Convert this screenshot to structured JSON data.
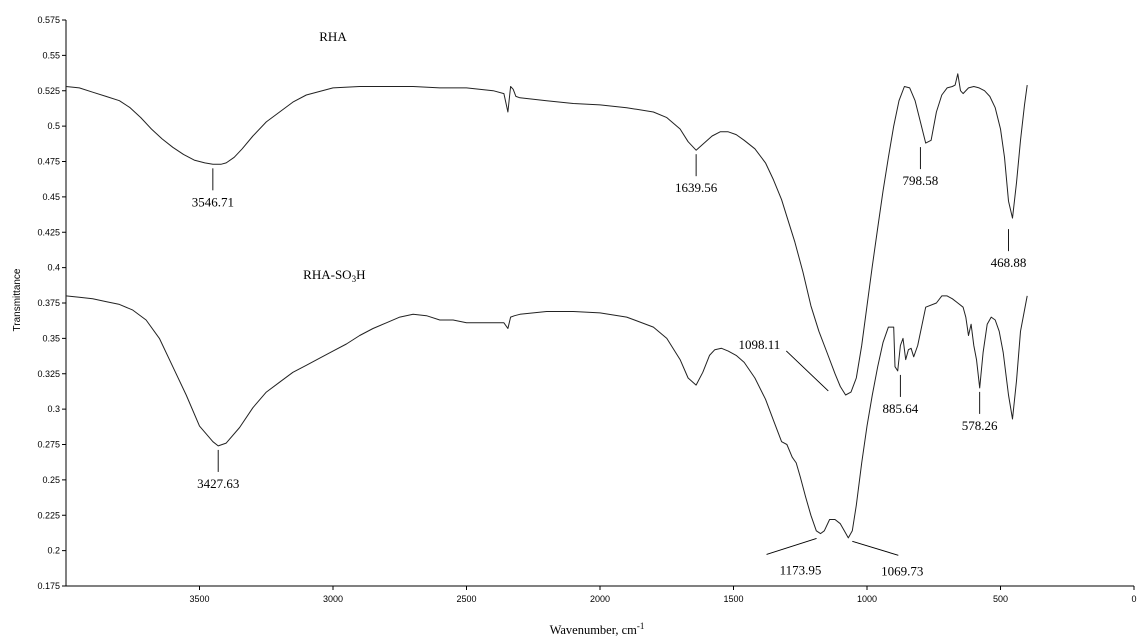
{
  "chart_data": {
    "type": "line",
    "title": "",
    "xlabel": "Wavenumber, cm",
    "xlabel_superscript": "-1",
    "ylabel": "Transmittance",
    "xlim": [
      4000,
      0
    ],
    "ylim": [
      0.175,
      0.575
    ],
    "grid": false,
    "x_ticks": [
      "3500",
      "3000",
      "2500",
      "2000",
      "1500",
      "1000",
      "500",
      "0"
    ],
    "y_ticks": [
      "0.175",
      "0.2",
      "0.225",
      "0.25",
      "0.275",
      "0.3",
      "0.325",
      "0.35",
      "0.375",
      "0.4",
      "0.425",
      "0.45",
      "0.475",
      "0.5",
      "0.525",
      "0.55",
      "0.575"
    ],
    "series": [
      {
        "name": "RHA",
        "color": "#222222",
        "x": [
          4000,
          3950,
          3900,
          3850,
          3800,
          3760,
          3720,
          3680,
          3640,
          3600,
          3560,
          3520,
          3480,
          3450,
          3420,
          3400,
          3370,
          3340,
          3300,
          3250,
          3200,
          3150,
          3100,
          3000,
          2900,
          2800,
          2700,
          2600,
          2500,
          2400,
          2360,
          2345,
          2335,
          2325,
          2315,
          2300,
          2250,
          2200,
          2100,
          2000,
          1900,
          1800,
          1750,
          1700,
          1670,
          1640,
          1610,
          1580,
          1550,
          1520,
          1490,
          1460,
          1420,
          1380,
          1350,
          1320,
          1300,
          1270,
          1240,
          1210,
          1180,
          1150,
          1120,
          1100,
          1080,
          1060,
          1040,
          1020,
          1000,
          980,
          960,
          940,
          920,
          900,
          880,
          860,
          840,
          820,
          800,
          780,
          760,
          740,
          720,
          700,
          680,
          670,
          660,
          650,
          640,
          620,
          600,
          580,
          560,
          540,
          520,
          500,
          485,
          470,
          455,
          440,
          425,
          410,
          400
        ],
        "y": [
          0.528,
          0.527,
          0.524,
          0.521,
          0.518,
          0.513,
          0.506,
          0.498,
          0.491,
          0.485,
          0.48,
          0.476,
          0.474,
          0.473,
          0.473,
          0.474,
          0.478,
          0.484,
          0.493,
          0.503,
          0.51,
          0.517,
          0.522,
          0.527,
          0.528,
          0.528,
          0.528,
          0.527,
          0.527,
          0.525,
          0.523,
          0.51,
          0.528,
          0.526,
          0.521,
          0.52,
          0.519,
          0.518,
          0.516,
          0.515,
          0.513,
          0.51,
          0.506,
          0.498,
          0.489,
          0.483,
          0.488,
          0.493,
          0.496,
          0.496,
          0.494,
          0.49,
          0.484,
          0.474,
          0.462,
          0.448,
          0.436,
          0.418,
          0.397,
          0.373,
          0.355,
          0.34,
          0.325,
          0.316,
          0.31,
          0.312,
          0.322,
          0.345,
          0.373,
          0.401,
          0.428,
          0.454,
          0.478,
          0.5,
          0.518,
          0.528,
          0.527,
          0.518,
          0.503,
          0.488,
          0.49,
          0.51,
          0.522,
          0.527,
          0.528,
          0.529,
          0.537,
          0.525,
          0.523,
          0.527,
          0.528,
          0.527,
          0.525,
          0.521,
          0.513,
          0.498,
          0.478,
          0.447,
          0.435,
          0.46,
          0.49,
          0.515,
          0.529
        ]
      },
      {
        "name": "RHA-SO3H",
        "color": "#222222",
        "x": [
          4000,
          3950,
          3900,
          3850,
          3800,
          3750,
          3700,
          3650,
          3600,
          3550,
          3500,
          3450,
          3430,
          3400,
          3350,
          3300,
          3250,
          3200,
          3150,
          3100,
          3050,
          3000,
          2950,
          2900,
          2850,
          2800,
          2750,
          2700,
          2650,
          2600,
          2550,
          2500,
          2450,
          2400,
          2360,
          2345,
          2335,
          2320,
          2300,
          2200,
          2100,
          2000,
          1900,
          1800,
          1750,
          1700,
          1670,
          1640,
          1615,
          1590,
          1570,
          1545,
          1520,
          1490,
          1460,
          1420,
          1380,
          1350,
          1320,
          1300,
          1280,
          1265,
          1250,
          1230,
          1210,
          1190,
          1174,
          1160,
          1140,
          1120,
          1100,
          1085,
          1070,
          1055,
          1040,
          1020,
          1000,
          980,
          960,
          940,
          920,
          900,
          895,
          885,
          875,
          865,
          855,
          845,
          835,
          825,
          810,
          780,
          740,
          720,
          700,
          680,
          660,
          640,
          630,
          620,
          610,
          600,
          590,
          578,
          565,
          550,
          535,
          520,
          505,
          490,
          470,
          455,
          440,
          425,
          410,
          400
        ],
        "y": [
          0.38,
          0.379,
          0.378,
          0.376,
          0.374,
          0.37,
          0.363,
          0.35,
          0.33,
          0.31,
          0.288,
          0.277,
          0.274,
          0.276,
          0.287,
          0.301,
          0.312,
          0.319,
          0.326,
          0.331,
          0.336,
          0.341,
          0.346,
          0.352,
          0.357,
          0.361,
          0.365,
          0.367,
          0.366,
          0.363,
          0.363,
          0.361,
          0.361,
          0.361,
          0.361,
          0.357,
          0.365,
          0.366,
          0.367,
          0.369,
          0.369,
          0.368,
          0.365,
          0.358,
          0.35,
          0.335,
          0.322,
          0.317,
          0.326,
          0.338,
          0.342,
          0.343,
          0.341,
          0.338,
          0.333,
          0.322,
          0.307,
          0.292,
          0.277,
          0.275,
          0.266,
          0.262,
          0.252,
          0.238,
          0.225,
          0.214,
          0.212,
          0.214,
          0.222,
          0.222,
          0.219,
          0.214,
          0.209,
          0.214,
          0.232,
          0.262,
          0.288,
          0.31,
          0.33,
          0.347,
          0.358,
          0.358,
          0.33,
          0.327,
          0.345,
          0.35,
          0.335,
          0.342,
          0.343,
          0.337,
          0.345,
          0.372,
          0.375,
          0.38,
          0.38,
          0.378,
          0.375,
          0.372,
          0.365,
          0.352,
          0.36,
          0.345,
          0.335,
          0.315,
          0.34,
          0.36,
          0.365,
          0.363,
          0.355,
          0.34,
          0.31,
          0.293,
          0.32,
          0.355,
          0.37,
          0.38
        ]
      }
    ],
    "annotations": [
      {
        "label": "3546.71",
        "x": 3450,
        "y": 0.473,
        "offset": "below"
      },
      {
        "label": "1639.56",
        "x": 1640,
        "y": 0.483,
        "offset": "below"
      },
      {
        "label": "798.58",
        "x": 800,
        "y": 0.488,
        "offset": "below"
      },
      {
        "label": "468.88",
        "x": 470,
        "y": 0.43,
        "offset": "below"
      },
      {
        "label": "1098.11",
        "x": 1130,
        "y": 0.31,
        "offset": "upper-left"
      },
      {
        "label": "3427.63",
        "x": 3430,
        "y": 0.274,
        "offset": "below"
      },
      {
        "label": "885.64",
        "x": 875,
        "y": 0.327,
        "offset": "below"
      },
      {
        "label": "578.26",
        "x": 578,
        "y": 0.315,
        "offset": "below"
      },
      {
        "label": "1173.95",
        "x": 1174,
        "y": 0.21,
        "offset": "lower-left"
      },
      {
        "label": "1069.73",
        "x": 1070,
        "y": 0.208,
        "offset": "lower-right"
      }
    ],
    "series_labels": [
      {
        "name": "RHA",
        "x": 3000,
        "y": 0.56
      },
      {
        "name": "RHA-SO3H",
        "x": 2995,
        "y": 0.392
      }
    ]
  }
}
